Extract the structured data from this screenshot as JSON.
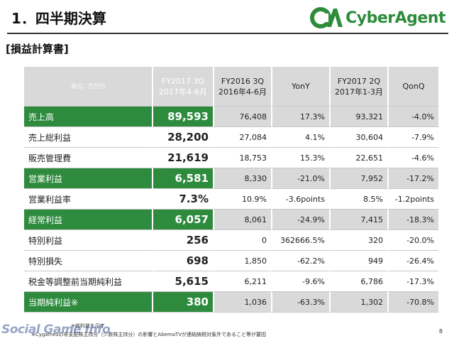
{
  "header": {
    "title": "1．四半期決算",
    "subtitle": "[損益計算書]",
    "logo_text": "CyberAgent"
  },
  "table": {
    "unit": "単位：百万円",
    "columns": [
      {
        "line1": "FY2017 3Q",
        "line2": "2017年4-6月"
      },
      {
        "line1": "FY2016 3Q",
        "line2": "2016年4-6月"
      },
      {
        "line1": "YonY",
        "line2": ""
      },
      {
        "line1": "FY2017 2Q",
        "line2": "2017年1-3月"
      },
      {
        "line1": "QonQ",
        "line2": ""
      }
    ],
    "rows": [
      {
        "label": "売上高",
        "cur": "89,593",
        "prev": "76,408",
        "yony": "17.3%",
        "q2": "93,321",
        "qonq": "-4.0%"
      },
      {
        "label": "売上総利益",
        "cur": "28,200",
        "prev": "27,084",
        "yony": "4.1%",
        "q2": "30,604",
        "qonq": "-7.9%"
      },
      {
        "label": "販売管理費",
        "cur": "21,619",
        "prev": "18,753",
        "yony": "15.3%",
        "q2": "22,651",
        "qonq": "-4.6%"
      },
      {
        "label": "営業利益",
        "cur": "6,581",
        "prev": "8,330",
        "yony": "-21.0%",
        "q2": "7,952",
        "qonq": "-17.2%"
      },
      {
        "label": "営業利益率",
        "cur": "7.3%",
        "prev": "10.9%",
        "yony": "-3.6points",
        "q2": "8.5%",
        "qonq": "-1.2points"
      },
      {
        "label": "経常利益",
        "cur": "6,057",
        "prev": "8,061",
        "yony": "-24.9%",
        "q2": "7,415",
        "qonq": "-18.3%"
      },
      {
        "label": "特別利益",
        "cur": "256",
        "prev": "0",
        "yony": "362666.5%",
        "q2": "320",
        "qonq": "-20.0%"
      },
      {
        "label": "特別損失",
        "cur": "698",
        "prev": "1,850",
        "yony": "-62.2%",
        "q2": "949",
        "qonq": "-26.4%"
      },
      {
        "label": "税金等調整前当期純利益",
        "cur": "5,615",
        "prev": "6,211",
        "yony": "-9.6%",
        "q2": "6,786",
        "qonq": "-17.3%"
      },
      {
        "label": "当期純利益※",
        "cur": "380",
        "prev": "1,036",
        "yony": "-63.3%",
        "q2": "1,302",
        "qonq": "-70.8%"
      }
    ]
  },
  "notes": {
    "line1": "※純利益を示す",
    "line2": "※Cygamesの非支配株主持分（少数株主持分）の影響とAbemaTVが連結納税対象外であること等が要因"
  },
  "watermark": "Social Game Info",
  "page_number": "8",
  "colors": {
    "green": "#2e8b3e",
    "gray": "#d9d9d9"
  }
}
